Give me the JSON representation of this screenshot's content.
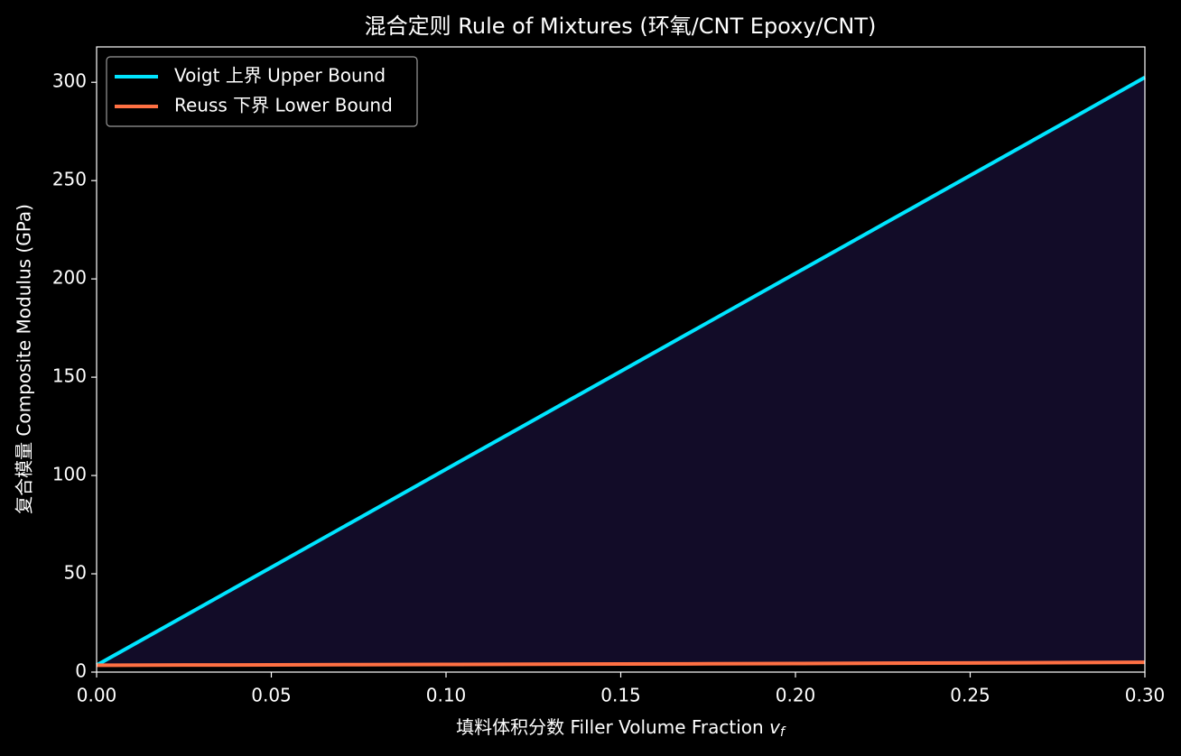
{
  "chart_data": {
    "type": "line",
    "title": "混合定则 Rule of Mixtures  (环氧/CNT Epoxy/CNT)",
    "xlabel": "填料体积分数 Filler Volume Fraction ",
    "xlabel_symbol": "v",
    "xlabel_subscript": "f",
    "ylabel": "复合模量 Composite Modulus (GPa)",
    "x": [
      0,
      0.025,
      0.05,
      0.075,
      0.1,
      0.125,
      0.15,
      0.175,
      0.2,
      0.225,
      0.25,
      0.275,
      0.3
    ],
    "series": [
      {
        "name": "Voigt 上界 Upper Bound",
        "color": "#00e5ff",
        "values": [
          3.5,
          28.4,
          53.3,
          78.2,
          103.2,
          128.1,
          153.0,
          177.9,
          202.8,
          227.7,
          252.6,
          277.5,
          302.5
        ]
      },
      {
        "name": "Reuss 下界 Lower Bound",
        "color": "#ff7043",
        "values": [
          3.5,
          3.59,
          3.68,
          3.78,
          3.89,
          4.0,
          4.12,
          4.24,
          4.37,
          4.51,
          4.66,
          4.82,
          4.99
        ]
      }
    ],
    "fill_between": true,
    "fill_color": "#120c28",
    "xlim": [
      0,
      0.3
    ],
    "ylim": [
      0,
      318
    ],
    "xticks": [
      {
        "value": 0,
        "label": "0.00"
      },
      {
        "value": 0.05,
        "label": "0.05"
      },
      {
        "value": 0.1,
        "label": "0.10"
      },
      {
        "value": 0.15,
        "label": "0.15"
      },
      {
        "value": 0.2,
        "label": "0.20"
      },
      {
        "value": 0.25,
        "label": "0.25"
      },
      {
        "value": 0.3,
        "label": "0.30"
      }
    ],
    "yticks": [
      0,
      50,
      100,
      150,
      200,
      250,
      300
    ],
    "grid": false,
    "legend": "upper left"
  }
}
